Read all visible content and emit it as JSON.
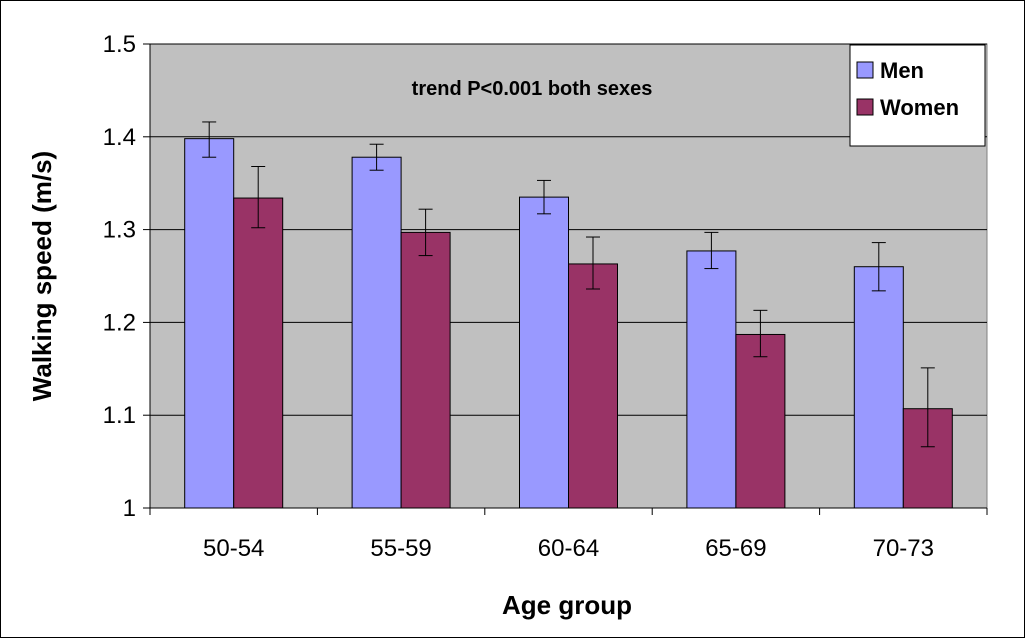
{
  "chart_data": {
    "type": "bar",
    "title": "",
    "xlabel": "Age group",
    "ylabel": "Walking speed (m/s)",
    "categories": [
      "50-54",
      "55-59",
      "60-64",
      "65-69",
      "70-73"
    ],
    "ylim": [
      1,
      1.5
    ],
    "yticks": [
      "1",
      "1.1",
      "1.2",
      "1.3",
      "1.4",
      "1.5"
    ],
    "grid": true,
    "annotation": "trend P<0.001 both sexes",
    "legend_position": "top-right",
    "series": [
      {
        "name": "Men",
        "color": "#9999ff",
        "values": [
          1.398,
          1.378,
          1.335,
          1.277,
          1.26
        ],
        "err_low": [
          1.378,
          1.364,
          1.317,
          1.258,
          1.234
        ],
        "err_high": [
          1.416,
          1.392,
          1.353,
          1.297,
          1.286
        ]
      },
      {
        "name": "Women",
        "color": "#993366",
        "values": [
          1.334,
          1.297,
          1.263,
          1.187,
          1.107
        ],
        "err_low": [
          1.302,
          1.272,
          1.236,
          1.163,
          1.066
        ],
        "err_high": [
          1.368,
          1.322,
          1.292,
          1.213,
          1.151
        ]
      }
    ]
  }
}
